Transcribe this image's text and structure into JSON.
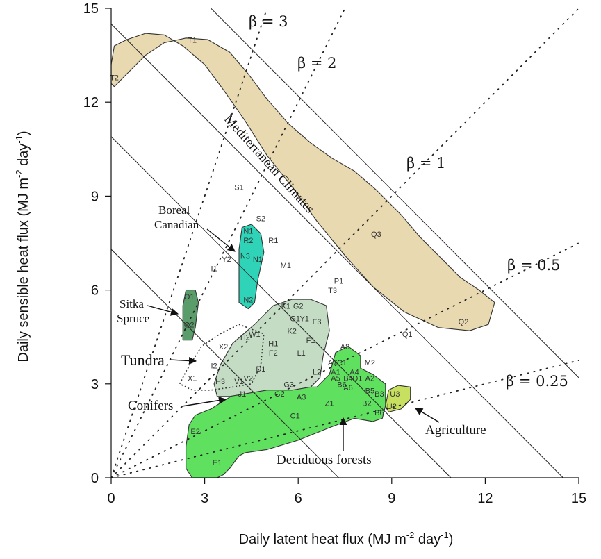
{
  "chart_data": {
    "type": "scatter",
    "xlabel": "Daily latent heat flux (MJ m",
    "xlabel_sup1": "-2",
    "xlabel_mid": " day",
    "xlabel_sup2": "-1",
    "xlabel_end": ")",
    "ylabel": "Daily sensible heat flux (MJ m",
    "ylabel_sup1": "-2",
    "ylabel_mid": " day",
    "ylabel_sup2": "-1",
    "ylabel_end": ")",
    "xlim": [
      0,
      15
    ],
    "ylim": [
      0,
      15
    ],
    "xticks": [
      "0",
      "3",
      "6",
      "9",
      "12",
      "15"
    ],
    "yticks": [
      "0",
      "3",
      "6",
      "9",
      "12",
      "15"
    ],
    "available_energy_lines": [
      7.3,
      10.9,
      14.5,
      18.2
    ],
    "bowen_lines": [
      {
        "beta": 3,
        "label": "β = 3"
      },
      {
        "beta": 2,
        "label": "β = 2"
      },
      {
        "beta": 1,
        "label": "β = 1"
      },
      {
        "beta": 0.5,
        "label": "β = 0.5"
      },
      {
        "beta": 0.25,
        "label": "β = 0.25"
      }
    ],
    "regions": [
      {
        "name": "mediterranean",
        "label": "Mediterranean Climates",
        "color": "#e8d9b0",
        "polygon": [
          [
            0,
            13.2
          ],
          [
            0.1,
            13.8
          ],
          [
            0.5,
            14.0
          ],
          [
            1.1,
            14.2
          ],
          [
            1.7,
            14.15
          ],
          [
            2.3,
            13.8
          ],
          [
            3.0,
            13.2
          ],
          [
            3.6,
            12.4
          ],
          [
            4.3,
            11.4
          ],
          [
            5.0,
            10.3
          ],
          [
            5.8,
            9.3
          ],
          [
            6.6,
            8.2
          ],
          [
            7.5,
            7.1
          ],
          [
            8.4,
            6.1
          ],
          [
            9.4,
            5.3
          ],
          [
            10.5,
            4.8
          ],
          [
            11.5,
            4.7
          ],
          [
            12.1,
            4.9
          ],
          [
            12.3,
            5.6
          ],
          [
            11.8,
            6.0
          ],
          [
            11.2,
            6.4
          ],
          [
            10.6,
            7.0
          ],
          [
            9.9,
            7.7
          ],
          [
            9.3,
            8.4
          ],
          [
            8.5,
            9.2
          ],
          [
            7.8,
            9.8
          ],
          [
            7.1,
            10.2
          ],
          [
            6.4,
            10.7
          ],
          [
            5.7,
            11.3
          ],
          [
            5.0,
            12.1
          ],
          [
            4.4,
            12.9
          ],
          [
            3.8,
            13.6
          ],
          [
            3.1,
            14.0
          ],
          [
            2.4,
            14.05
          ],
          [
            1.7,
            13.9
          ],
          [
            1.1,
            13.5
          ],
          [
            0.5,
            12.9
          ],
          [
            0.1,
            12.5
          ],
          [
            0,
            12.6
          ]
        ]
      },
      {
        "name": "deciduous",
        "label": "Deciduous forests",
        "color": "#5fe05f",
        "polygon": [
          [
            2.4,
            1.0
          ],
          [
            2.5,
            1.7
          ],
          [
            2.7,
            2.0
          ],
          [
            3.2,
            2.2
          ],
          [
            4.0,
            2.7
          ],
          [
            5.0,
            2.9
          ],
          [
            5.8,
            2.9
          ],
          [
            6.6,
            2.9
          ],
          [
            7.0,
            3.3
          ],
          [
            7.2,
            4.0
          ],
          [
            7.6,
            4.2
          ],
          [
            8.0,
            3.9
          ],
          [
            8.0,
            3.5
          ],
          [
            8.4,
            3.3
          ],
          [
            8.8,
            3.0
          ],
          [
            8.8,
            2.3
          ],
          [
            8.7,
            1.9
          ],
          [
            8.4,
            1.8
          ],
          [
            7.8,
            1.9
          ],
          [
            7.0,
            1.6
          ],
          [
            6.0,
            1.2
          ],
          [
            5.0,
            0.9
          ],
          [
            4.3,
            0.8
          ],
          [
            4.1,
            0.7
          ],
          [
            3.8,
            0.3
          ],
          [
            3.6,
            0.1
          ],
          [
            3.4,
            0.0
          ],
          [
            2.6,
            0.0
          ],
          [
            2.4,
            0.3
          ]
        ]
      },
      {
        "name": "conifers",
        "label": "Conifers",
        "color": "#c4dcc4",
        "polygon": [
          [
            3.3,
            3.0
          ],
          [
            3.5,
            3.6
          ],
          [
            3.9,
            4.3
          ],
          [
            4.6,
            4.9
          ],
          [
            5.2,
            5.5
          ],
          [
            5.8,
            5.7
          ],
          [
            6.4,
            5.7
          ],
          [
            6.9,
            5.5
          ],
          [
            7.0,
            4.7
          ],
          [
            6.8,
            3.9
          ],
          [
            6.7,
            3.2
          ],
          [
            6.4,
            2.9
          ],
          [
            5.8,
            2.8
          ],
          [
            5.0,
            2.8
          ],
          [
            4.4,
            2.7
          ],
          [
            3.8,
            2.6
          ],
          [
            3.4,
            2.6
          ]
        ]
      },
      {
        "name": "boreal",
        "label": "Boreal Canadian",
        "color": "#2fd3b8",
        "polygon": [
          [
            4.1,
            5.6
          ],
          [
            4.1,
            7.3
          ],
          [
            4.2,
            8.0
          ],
          [
            4.5,
            8.1
          ],
          [
            4.8,
            7.8
          ],
          [
            4.9,
            7.2
          ],
          [
            4.7,
            6.3
          ],
          [
            4.6,
            5.6
          ],
          [
            4.4,
            5.4
          ]
        ]
      },
      {
        "name": "sitka",
        "label": "Sitka Spruce",
        "color": "#5a9c6a",
        "polygon": [
          [
            2.3,
            4.4
          ],
          [
            2.3,
            5.5
          ],
          [
            2.4,
            6.0
          ],
          [
            2.7,
            6.0
          ],
          [
            2.8,
            5.6
          ],
          [
            2.7,
            4.8
          ],
          [
            2.6,
            4.4
          ]
        ]
      },
      {
        "name": "agriculture",
        "label": "Agriculture",
        "color": "#c8e060",
        "polygon": [
          [
            8.8,
            2.3
          ],
          [
            8.9,
            2.8
          ],
          [
            9.2,
            2.95
          ],
          [
            9.6,
            2.9
          ],
          [
            9.6,
            2.5
          ],
          [
            9.3,
            2.2
          ],
          [
            8.9,
            2.1
          ]
        ]
      },
      {
        "name": "tundra",
        "label": "Tundra",
        "color": "none",
        "polygon": [
          [
            2.2,
            3.0
          ],
          [
            2.4,
            3.4
          ],
          [
            2.9,
            4.2
          ],
          [
            3.5,
            4.6
          ],
          [
            4.1,
            4.9
          ],
          [
            4.9,
            4.6
          ],
          [
            4.8,
            3.6
          ],
          [
            4.5,
            3.0
          ],
          [
            3.9,
            2.9
          ],
          [
            3.2,
            2.8
          ],
          [
            2.6,
            2.8
          ]
        ]
      }
    ],
    "sites": [
      {
        "label": "T1",
        "x": 2.6,
        "y": 13.9
      },
      {
        "label": "T2",
        "x": 0.1,
        "y": 12.7
      },
      {
        "label": "S1",
        "x": 4.1,
        "y": 9.2
      },
      {
        "label": "S2",
        "x": 4.8,
        "y": 8.2
      },
      {
        "label": "N1",
        "x": 4.4,
        "y": 7.8
      },
      {
        "label": "R2",
        "x": 4.4,
        "y": 7.5
      },
      {
        "label": "R1",
        "x": 5.2,
        "y": 7.5
      },
      {
        "label": "N3",
        "x": 4.3,
        "y": 7.0
      },
      {
        "label": "N1",
        "x": 4.7,
        "y": 6.9
      },
      {
        "label": "Y2",
        "x": 3.7,
        "y": 6.9
      },
      {
        "label": "I1",
        "x": 3.3,
        "y": 6.6
      },
      {
        "label": "M1",
        "x": 5.6,
        "y": 6.7
      },
      {
        "label": "N2",
        "x": 4.4,
        "y": 5.6
      },
      {
        "label": "O1",
        "x": 2.5,
        "y": 5.7
      },
      {
        "label": "O2",
        "x": 2.5,
        "y": 4.8
      },
      {
        "label": "K1",
        "x": 5.6,
        "y": 5.4
      },
      {
        "label": "G2",
        "x": 6.0,
        "y": 5.4
      },
      {
        "label": "G1",
        "x": 5.9,
        "y": 5.0
      },
      {
        "label": "Y1",
        "x": 6.2,
        "y": 5.0
      },
      {
        "label": "K2",
        "x": 5.8,
        "y": 4.6
      },
      {
        "label": "F3",
        "x": 6.6,
        "y": 4.9
      },
      {
        "label": "H2",
        "x": 4.3,
        "y": 4.4
      },
      {
        "label": "W1",
        "x": 4.6,
        "y": 4.5
      },
      {
        "label": "H1",
        "x": 5.2,
        "y": 4.2
      },
      {
        "label": "F1",
        "x": 6.4,
        "y": 4.3
      },
      {
        "label": "X2",
        "x": 3.6,
        "y": 4.1
      },
      {
        "label": "F2",
        "x": 5.2,
        "y": 3.9
      },
      {
        "label": "L1",
        "x": 6.1,
        "y": 3.9
      },
      {
        "label": "A8",
        "x": 7.5,
        "y": 4.1
      },
      {
        "label": "A7",
        "x": 7.1,
        "y": 3.6
      },
      {
        "label": "C1",
        "x": 7.4,
        "y": 3.6
      },
      {
        "label": "M2",
        "x": 8.3,
        "y": 3.6
      },
      {
        "label": "I2",
        "x": 3.3,
        "y": 3.5
      },
      {
        "label": "D1",
        "x": 4.8,
        "y": 3.4
      },
      {
        "label": "L2",
        "x": 6.6,
        "y": 3.3
      },
      {
        "label": "A1",
        "x": 7.2,
        "y": 3.3
      },
      {
        "label": "A4",
        "x": 7.8,
        "y": 3.3
      },
      {
        "label": "B4",
        "x": 7.6,
        "y": 3.1
      },
      {
        "label": "D1",
        "x": 7.9,
        "y": 3.1
      },
      {
        "label": "A2",
        "x": 8.3,
        "y": 3.1
      },
      {
        "label": "A5",
        "x": 7.2,
        "y": 3.1
      },
      {
        "label": "B6",
        "x": 7.4,
        "y": 2.9
      },
      {
        "label": "A6",
        "x": 7.6,
        "y": 2.8
      },
      {
        "label": "X1",
        "x": 2.6,
        "y": 3.1
      },
      {
        "label": "H3",
        "x": 3.5,
        "y": 3.0
      },
      {
        "label": "V1",
        "x": 4.1,
        "y": 3.0
      },
      {
        "label": "V2",
        "x": 4.4,
        "y": 3.1
      },
      {
        "label": "G3",
        "x": 5.7,
        "y": 2.9
      },
      {
        "label": "J1",
        "x": 4.2,
        "y": 2.6
      },
      {
        "label": "G2",
        "x": 5.4,
        "y": 2.6
      },
      {
        "label": "A3",
        "x": 6.1,
        "y": 2.5
      },
      {
        "label": "B5",
        "x": 8.3,
        "y": 2.7
      },
      {
        "label": "B3",
        "x": 8.6,
        "y": 2.6
      },
      {
        "label": "U3",
        "x": 9.1,
        "y": 2.6
      },
      {
        "label": "Z1",
        "x": 7.0,
        "y": 2.3
      },
      {
        "label": "B2",
        "x": 8.2,
        "y": 2.3
      },
      {
        "label": "U2",
        "x": 9.0,
        "y": 2.2
      },
      {
        "label": "B6",
        "x": 8.6,
        "y": 2.0
      },
      {
        "label": "C1",
        "x": 5.9,
        "y": 1.9
      },
      {
        "label": "E2",
        "x": 2.7,
        "y": 1.4
      },
      {
        "label": "E1",
        "x": 3.4,
        "y": 0.4
      },
      {
        "label": "P1",
        "x": 7.3,
        "y": 6.2
      },
      {
        "label": "T3",
        "x": 7.1,
        "y": 5.9
      },
      {
        "label": "Q3",
        "x": 8.5,
        "y": 7.7
      },
      {
        "label": "Q1",
        "x": 9.5,
        "y": 4.5
      },
      {
        "label": "Q2",
        "x": 11.3,
        "y": 4.9
      }
    ],
    "annotations": {
      "boreal": "Boreal",
      "boreal2": "Canadian",
      "sitka": "Sitka",
      "sitka2": "Spruce",
      "tundra": "Tundra",
      "conifers": "Conifers",
      "agriculture": "Agriculture",
      "deciduous": "Deciduous forests",
      "mediterranean": "Mediterranean Climates"
    }
  }
}
